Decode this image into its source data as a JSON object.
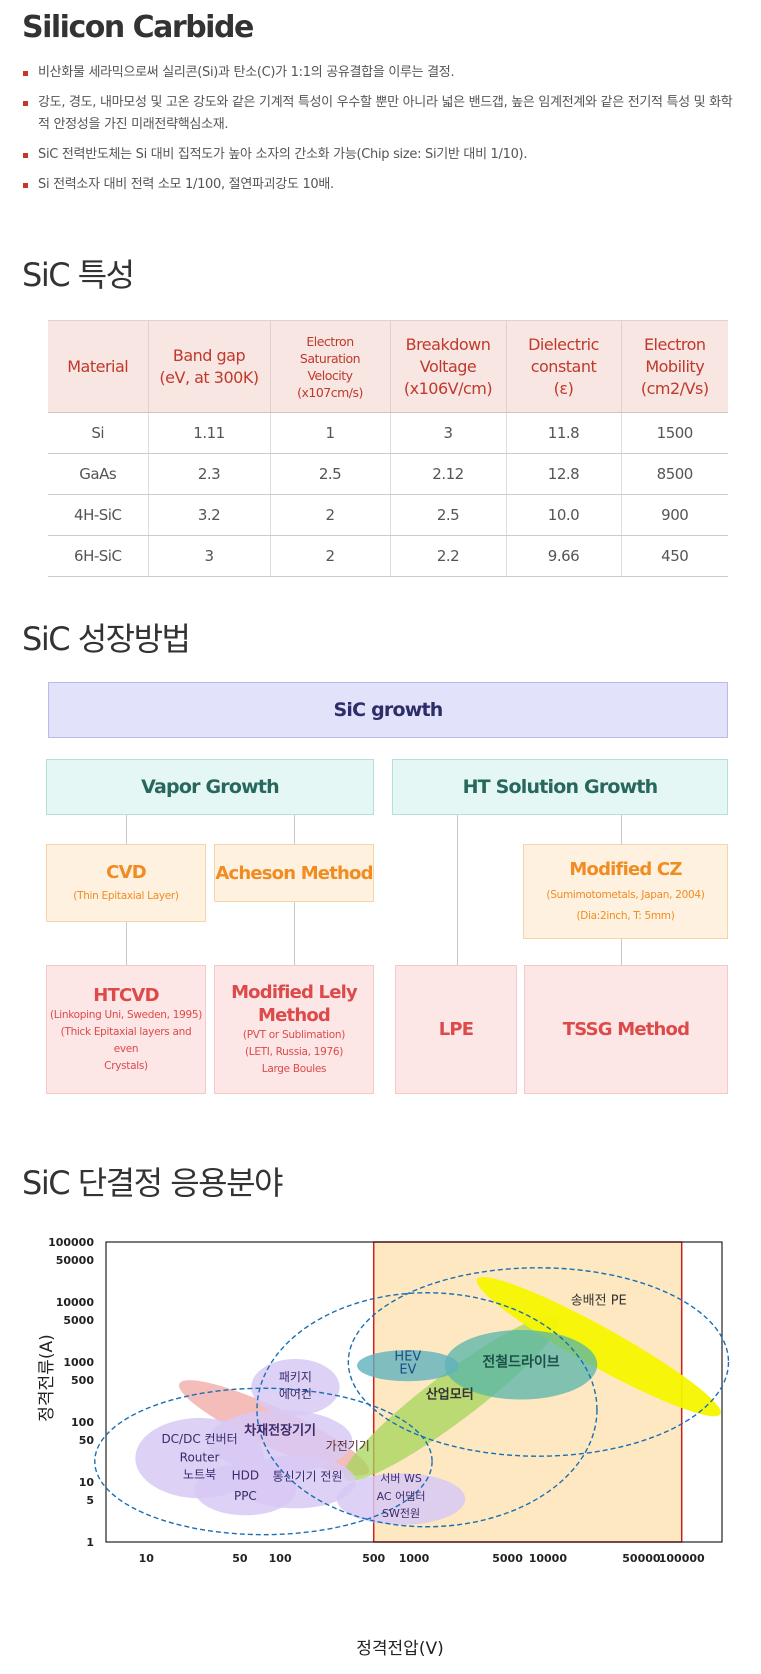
{
  "intro": {
    "title": "Silicon Carbide",
    "bullets": [
      "비산화물 세라믹으로써 실리콘(Si)과 탄소(C)가 1:1의 공유결합을 이루는 결정.",
      "강도, 경도, 내마모성 및 고온 강도와 같은 기계적 특성이 우수할 뿐만 아니라 넓은 밴드갭, 높은 임계전계와 같은 전기적 특성 및 화학적 안정성을 가진 미래전략핵심소재.",
      "SiC 전력반도체는 Si 대비 집적도가 높아 소자의 간소화 가능(Chip size: Si기반 대비 1/10).",
      "Si 전력소자 대비 전력 소모 1/100, 절연파괴강도 10배."
    ]
  },
  "properties": {
    "title": "SiC 특성",
    "headers": [
      [
        "Material"
      ],
      [
        "Band gap",
        "(eV, at 300K)"
      ],
      [
        "Electron",
        "Saturation",
        "Velocity",
        "(x107cm/s)"
      ],
      [
        "Breakdown",
        "Voltage",
        "(x106V/cm)"
      ],
      [
        "Dielectric",
        "constant",
        "(ε)"
      ],
      [
        "Electron",
        "Mobility",
        "(cm2/Vs)"
      ]
    ],
    "rows": [
      [
        "Si",
        "1.11",
        "1",
        "3",
        "11.8",
        "1500"
      ],
      [
        "GaAs",
        "2.3",
        "2.5",
        "2.12",
        "12.8",
        "8500"
      ],
      [
        "4H-SiC",
        "3.2",
        "2",
        "2.5",
        "10.0",
        "900"
      ],
      [
        "6H-SiC",
        "3",
        "2",
        "2.2",
        "9.66",
        "450"
      ]
    ]
  },
  "growth": {
    "title": "SiC 성장방법",
    "root": "SiC growth",
    "vapor": "Vapor Growth",
    "solution": "HT Solution Growth",
    "cvd": {
      "title": "CVD",
      "sub": "(Thin Epitaxial Layer)"
    },
    "acheson": {
      "title": "Acheson Method"
    },
    "modified_cz": {
      "title": "Modified CZ",
      "sub1": "(Sumimotometals, Japan, 2004)",
      "sub2": "(Dia:2inch, T: 5mm)"
    },
    "htcvd": {
      "title": "HTCVD",
      "sub1": "(Linkoping Uni, Sweden, 1995)",
      "sub2": "(Thick Epitaxial layers and even",
      "sub3": "Crystals)"
    },
    "lely": {
      "title1": "Modified Lely",
      "title2": "Method",
      "sub1": "(PVT or Sublimation)",
      "sub2": "(LETI, Russia, 1976)",
      "sub3": "Large Boules"
    },
    "lpe": {
      "title": "LPE"
    },
    "tssg": {
      "title": "TSSG Method"
    }
  },
  "applications": {
    "title": "SiC 단결정 응용분야",
    "colors": {
      "highlight_fill": "#fde8c2",
      "highlight_border": "#cc1f1f",
      "dashed": "#1a6fb5"
    },
    "chart_data": {
      "type": "scatter",
      "xlabel": "정격전압(V)",
      "ylabel": "정격전류(A)",
      "xscale": "log",
      "yscale": "log",
      "xlim": [
        5,
        200000
      ],
      "ylim": [
        1,
        100000
      ],
      "x_ticks": [
        "10",
        "50",
        "100",
        "500",
        "1000",
        "5000",
        "10000",
        "50000",
        "100000"
      ],
      "y_ticks": [
        "1",
        "5",
        "10",
        "50",
        "100",
        "500",
        "1000",
        "5000",
        "10000",
        "50000",
        "100000"
      ],
      "highlight_region": {
        "x": [
          500,
          100000
        ],
        "y": [
          1,
          100000
        ]
      },
      "regions": [
        {
          "label": "송배전 PE",
          "color": "#f5f500"
        },
        {
          "label": "전철드라이브",
          "color": "#56b6a8"
        },
        {
          "label": "HEV EV",
          "color": "#5fb1be"
        },
        {
          "label": "산업모터",
          "color": "#a5d55a"
        },
        {
          "label": "가전기기",
          "color": "#f0a7a3"
        },
        {
          "label": "패키지 에어컨",
          "color": "#d8c9f5"
        },
        {
          "label": "차재전장기기",
          "color": "#d8c9f5"
        },
        {
          "label": "DC/DC 컨버터 Router 노트북",
          "color": "#d8c9f5"
        },
        {
          "label": "HDD PPC",
          "color": "#d8c9f5"
        },
        {
          "label": "통신기기 전원",
          "color": "#d8c9f5"
        },
        {
          "label": "서버 WS AC 어댑터 SW전원",
          "color": "#d8c9f5"
        }
      ],
      "labels": {
        "pe": "송배전 PE",
        "rail": "전철드라이브",
        "hev1": "HEV",
        "hev2": "EV",
        "motor": "산업모터",
        "home": "가전기기",
        "pkg1": "패키지",
        "pkg2": "에어컨",
        "car": "차재전장기기",
        "dc1": "DC/DC 컨버터",
        "dc2": "Router",
        "dc3": "노트북",
        "hdd1": "HDD",
        "hdd2": "PPC",
        "tel": "통신기기 전원",
        "srv1": "서버 WS",
        "srv2": "AC 어댑터",
        "srv3": "SW전원"
      }
    }
  }
}
